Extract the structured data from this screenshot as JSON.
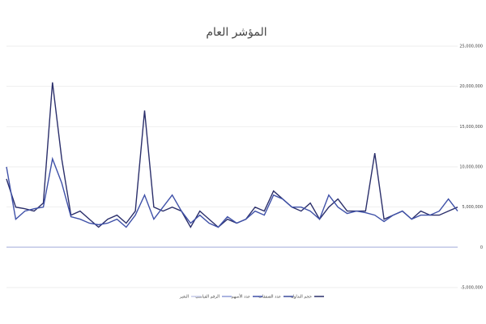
{
  "chart_data": {
    "type": "line",
    "title": "المؤشر العام",
    "categories": [
      null,
      null,
      null,
      null,
      null,
      null,
      null,
      null,
      null,
      null,
      null,
      null,
      null,
      null,
      null,
      null,
      null,
      null,
      null,
      null,
      null,
      null,
      null,
      null,
      null,
      null,
      null,
      null,
      null,
      null,
      null,
      null,
      null,
      null,
      null,
      null,
      null,
      null,
      null,
      null,
      null,
      null,
      null,
      null,
      null,
      null,
      null,
      null,
      null,
      null
    ],
    "series": [
      {
        "name": "حجم التداول",
        "color": "#2b2f6b",
        "values": [
          8500000,
          5000000,
          4800000,
          4500000,
          5500000,
          20500000,
          11000000,
          4000000,
          4500000,
          3500000,
          2500000,
          3500000,
          4000000,
          3000000,
          4500000,
          17000000,
          5000000,
          4500000,
          5000000,
          4500000,
          2500000,
          4500000,
          3500000,
          2500000,
          3500000,
          3000000,
          3500000,
          5000000,
          4500000,
          7000000,
          6000000,
          5000000,
          4500000,
          5500000,
          3500000,
          5000000,
          6000000,
          4500000,
          4500000,
          4500000,
          11700000,
          3500000,
          4000000,
          4500000,
          3500000,
          4500000,
          4000000,
          4000000,
          4500000,
          5000000
        ]
      },
      {
        "name": "عدد الصفقات",
        "color": "#3a4a9c",
        "values": [
          3000,
          3000,
          3000,
          3000,
          3000,
          3000,
          3000,
          3000,
          3000,
          3000,
          3000,
          3000,
          3000,
          3000,
          3000,
          3000,
          3000,
          3000,
          3000,
          3000,
          3000,
          3000,
          3000,
          3000,
          3000,
          3000,
          3000,
          3000,
          3000,
          3000,
          3000,
          3000,
          3000,
          3000,
          3000,
          3000,
          3000,
          3000,
          3000,
          3000,
          3000,
          3000,
          3000,
          3000,
          3000,
          3000,
          3000,
          3000,
          3000,
          3000
        ]
      },
      {
        "name": "عدد الأسهم",
        "color": "#3f51a8",
        "values": [
          10000000,
          3500000,
          4500000,
          4800000,
          5000000,
          11000000,
          8000000,
          3800000,
          3500000,
          3000000,
          2800000,
          3000000,
          3500000,
          2500000,
          4000000,
          6500000,
          3500000,
          5000000,
          6500000,
          4500000,
          3000000,
          4000000,
          3000000,
          2500000,
          3800000,
          3000000,
          3500000,
          4500000,
          4000000,
          6500000,
          6000000,
          5000000,
          5000000,
          4500000,
          3500000,
          6500000,
          5000000,
          4200000,
          4500000,
          4300000,
          4000000,
          3200000,
          4000000,
          4500000,
          3500000,
          4000000,
          4000000,
          4500000,
          6000000,
          4500000
        ]
      },
      {
        "name": "الرقم القياسي",
        "color": "#8f9bd6",
        "values": [
          6800,
          6800,
          6800,
          6800,
          6800,
          6800,
          6800,
          6800,
          6800,
          6800,
          6800,
          6800,
          6800,
          6800,
          6800,
          6800,
          6800,
          6800,
          6800,
          6800,
          6800,
          6800,
          6800,
          6800,
          6800,
          6800,
          6800,
          6800,
          6800,
          6800,
          6800,
          6800,
          6800,
          6800,
          6800,
          6800,
          6800,
          6800,
          6800,
          6800,
          6800,
          6800,
          6800,
          6800,
          6800,
          6800,
          6800,
          6800,
          6800,
          6800
        ]
      },
      {
        "name": "التغير",
        "color": "#c5cbe8",
        "values": [
          10,
          10,
          10,
          10,
          10,
          10,
          10,
          10,
          10,
          10,
          10,
          10,
          10,
          10,
          10,
          10,
          10,
          10,
          10,
          10,
          10,
          10,
          10,
          10,
          10,
          10,
          10,
          10,
          10,
          10,
          10,
          10,
          10,
          10,
          10,
          10,
          10,
          10,
          10,
          10,
          10,
          10,
          10,
          10,
          10,
          10,
          10,
          10,
          10,
          10
        ]
      }
    ],
    "ylim": [
      -5000000,
      25000000
    ],
    "yticks": [
      {
        "value": -5000000,
        "label": "-5,000,000"
      },
      0,
      {
        "value": 5000000,
        "label": "5,000,000"
      },
      {
        "value": 10000000,
        "label": "10,000,000"
      },
      {
        "value": 15000000,
        "label": "15,000,000"
      },
      {
        "value": 20000000,
        "label": "20,000,000"
      },
      {
        "value": 25000000,
        "label": "25,000,000"
      }
    ],
    "grid": true,
    "legend": "bottom"
  }
}
